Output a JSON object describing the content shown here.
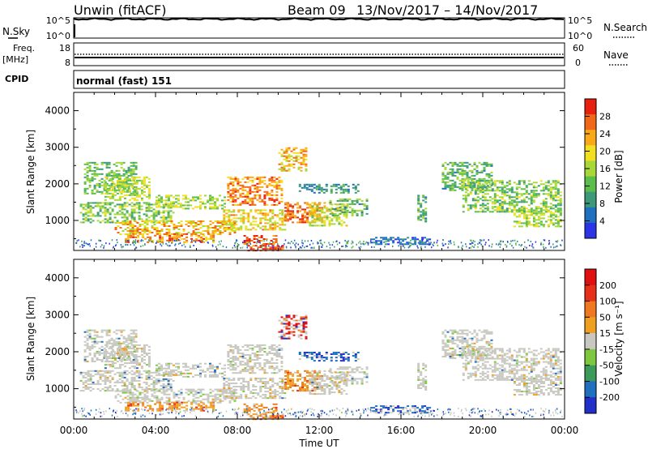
{
  "header": {
    "station": "Unwin (fitACF)",
    "beam": "Beam 09",
    "date_range": "13/Nov/2017 – 14/Nov/2017"
  },
  "strips": {
    "nsky_label": "N.Sky",
    "nsky_ticks": [
      "10^5",
      "10^0"
    ],
    "nsearch_label": "N.Search",
    "nsearch_ticks": [
      "10^5",
      "10^0"
    ],
    "freq_label_1": "Freq.",
    "freq_label_2": "[MHz]",
    "freq_ticks": [
      "18",
      "8"
    ],
    "nave_label": "Nave",
    "nave_ticks": [
      "60",
      "0"
    ],
    "cpid_label": "CPID",
    "cpid_value": "normal (fast) 151"
  },
  "chart_data": [
    {
      "type": "heatmap",
      "name": "power",
      "ylabel": "Slant Range [km]",
      "yticks": [
        "4000",
        "3000",
        "2000",
        "1000"
      ],
      "ylim": [
        180,
        4500
      ],
      "colorbar_label": "Power [dB]",
      "colorbar_ticks": [
        "28",
        "24",
        "20",
        "16",
        "12",
        "8",
        "4"
      ],
      "colorbar_colors": [
        "#2b35e6",
        "#2070c0",
        "#3c9a7a",
        "#5bbd4a",
        "#a8d838",
        "#f0e020",
        "#f8a818",
        "#f06818",
        "#e82010"
      ]
    },
    {
      "type": "heatmap",
      "name": "velocity",
      "ylabel": "Slant Range [km]",
      "yticks": [
        "4000",
        "3000",
        "2000",
        "1000"
      ],
      "ylim": [
        180,
        4500
      ],
      "colorbar_label": "Velocity [m s⁻¹]",
      "colorbar_ticks": [
        "200",
        "100",
        "50",
        "15",
        "-15",
        "-50",
        "-100",
        "-200"
      ],
      "colorbar_colors": [
        "#2030c8",
        "#2070c0",
        "#3c9a5a",
        "#7ec840",
        "#c8c8c0",
        "#f0a020",
        "#f07820",
        "#e83018",
        "#e01010"
      ]
    }
  ],
  "xaxis": {
    "label": "Time UT",
    "ticks": [
      "00:00",
      "04:00",
      "08:00",
      "12:00",
      "16:00",
      "20:00",
      "00:00"
    ]
  },
  "blobs": [
    {
      "t0": 0.5,
      "t1": 3.2,
      "r0": 1700,
      "r1": 2600,
      "p": [
        10,
        18
      ],
      "v": "g"
    },
    {
      "t0": 1.5,
      "t1": 3.8,
      "r0": 1500,
      "r1": 2200,
      "p": [
        14,
        22
      ],
      "v": "g"
    },
    {
      "t0": 0.3,
      "t1": 5.0,
      "r0": 900,
      "r1": 1500,
      "p": [
        10,
        20
      ],
      "v": "g"
    },
    {
      "t0": 4.0,
      "t1": 7.5,
      "r0": 1300,
      "r1": 1700,
      "p": [
        12,
        22
      ],
      "v": "g"
    },
    {
      "t0": 2.0,
      "t1": 8.0,
      "r0": 600,
      "r1": 1000,
      "p": [
        16,
        28
      ],
      "v": "g"
    },
    {
      "t0": 2.5,
      "t1": 7.0,
      "r0": 350,
      "r1": 650,
      "p": [
        20,
        30
      ],
      "v": "o"
    },
    {
      "t0": 7.5,
      "t1": 10.3,
      "r0": 1400,
      "r1": 2200,
      "p": [
        20,
        30
      ],
      "v": "g"
    },
    {
      "t0": 8.3,
      "t1": 10.0,
      "r0": 300,
      "r1": 600,
      "p": [
        24,
        32
      ],
      "v": "o"
    },
    {
      "t0": 8.5,
      "t1": 10.3,
      "r0": 150,
      "r1": 330,
      "p": [
        24,
        32
      ],
      "v": "o"
    },
    {
      "t0": 7.3,
      "t1": 10.5,
      "r0": 700,
      "r1": 1300,
      "p": [
        16,
        26
      ],
      "v": "g"
    },
    {
      "t0": 10.0,
      "t1": 11.5,
      "r0": 2300,
      "r1": 3000,
      "p": [
        16,
        28
      ],
      "v": "r"
    },
    {
      "t0": 10.3,
      "t1": 12.3,
      "r0": 900,
      "r1": 1500,
      "p": [
        22,
        32
      ],
      "v": "o"
    },
    {
      "t0": 11.5,
      "t1": 13.5,
      "r0": 800,
      "r1": 1500,
      "p": [
        14,
        24
      ],
      "v": "g"
    },
    {
      "t0": 12.5,
      "t1": 14.5,
      "r0": 1100,
      "r1": 1600,
      "p": [
        8,
        18
      ],
      "v": "g"
    },
    {
      "t0": 11.0,
      "t1": 14.0,
      "r0": 1700,
      "r1": 2000,
      "p": [
        6,
        14
      ],
      "v": "b"
    },
    {
      "t0": 14.5,
      "t1": 17.5,
      "r0": 300,
      "r1": 550,
      "p": [
        4,
        10
      ],
      "v": "b"
    },
    {
      "t0": 16.8,
      "t1": 17.3,
      "r0": 900,
      "r1": 1700,
      "p": [
        8,
        18
      ],
      "v": "g"
    },
    {
      "t0": 18.0,
      "t1": 20.5,
      "r0": 1800,
      "r1": 2600,
      "p": [
        8,
        18
      ],
      "v": "g"
    },
    {
      "t0": 19.0,
      "t1": 23.9,
      "r0": 1200,
      "r1": 2100,
      "p": [
        10,
        20
      ],
      "v": "g"
    },
    {
      "t0": 21.5,
      "t1": 23.9,
      "r0": 800,
      "r1": 1300,
      "p": [
        12,
        22
      ],
      "v": "g"
    }
  ]
}
